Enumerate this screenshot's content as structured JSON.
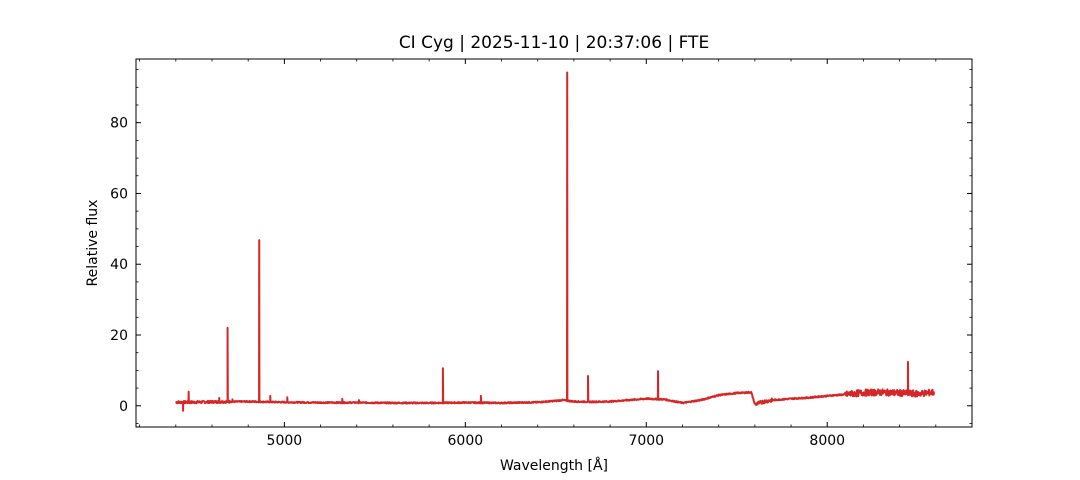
{
  "chart_data": {
    "type": "line",
    "title": "CI Cyg | 2025-11-10 | 20:37:06 | FTE",
    "xlabel": "Wavelength [Å]",
    "ylabel": "Relative flux",
    "xlim": [
      4180,
      8800
    ],
    "ylim": [
      -6,
      98
    ],
    "x_ticks": [
      5000,
      6000,
      7000,
      8000
    ],
    "y_ticks": [
      0,
      20,
      40,
      60,
      80
    ],
    "grid": false,
    "line_color": "#d62728",
    "series": [
      {
        "continuum": [
          [
            4400,
            1.0
          ],
          [
            4500,
            1.0
          ],
          [
            4600,
            1.1
          ],
          [
            4800,
            1.2
          ],
          [
            5000,
            1.0
          ],
          [
            5200,
            0.9
          ],
          [
            5400,
            0.9
          ],
          [
            5600,
            0.8
          ],
          [
            5800,
            0.8
          ],
          [
            6000,
            0.9
          ],
          [
            6200,
            0.8
          ],
          [
            6400,
            1.0
          ],
          [
            6500,
            1.4
          ],
          [
            6540,
            1.6
          ],
          [
            6600,
            1.2
          ],
          [
            6700,
            1.1
          ],
          [
            6800,
            1.2
          ],
          [
            6900,
            1.6
          ],
          [
            7000,
            2.0
          ],
          [
            7100,
            1.8
          ],
          [
            7200,
            0.8
          ],
          [
            7300,
            1.6
          ],
          [
            7400,
            3.0
          ],
          [
            7500,
            3.6
          ],
          [
            7580,
            3.8
          ],
          [
            7600,
            0.4
          ],
          [
            7650,
            1.2
          ],
          [
            7700,
            1.6
          ],
          [
            7800,
            2.0
          ],
          [
            7900,
            2.3
          ],
          [
            8000,
            2.8
          ],
          [
            8100,
            3.2
          ],
          [
            8200,
            3.7
          ],
          [
            8300,
            3.8
          ],
          [
            8400,
            3.6
          ],
          [
            8500,
            3.4
          ],
          [
            8590,
            3.8
          ]
        ],
        "emission_lines": [
          {
            "x": 4440,
            "y": -1.4
          },
          {
            "x": 4471,
            "y": 4.0
          },
          {
            "x": 4640,
            "y": 2.2
          },
          {
            "x": 4686,
            "y": 22.0
          },
          {
            "x": 4713,
            "y": 1.8
          },
          {
            "x": 4861,
            "y": 46.8
          },
          {
            "x": 4922,
            "y": 2.8
          },
          {
            "x": 5016,
            "y": 2.4
          },
          {
            "x": 5320,
            "y": 2.0
          },
          {
            "x": 5412,
            "y": 1.6
          },
          {
            "x": 5876,
            "y": 10.6
          },
          {
            "x": 6086,
            "y": 2.8
          },
          {
            "x": 6563,
            "y": 94.2
          },
          {
            "x": 6678,
            "y": 8.4
          },
          {
            "x": 7065,
            "y": 9.8
          },
          {
            "x": 8446,
            "y": 12.4
          }
        ]
      }
    ]
  }
}
